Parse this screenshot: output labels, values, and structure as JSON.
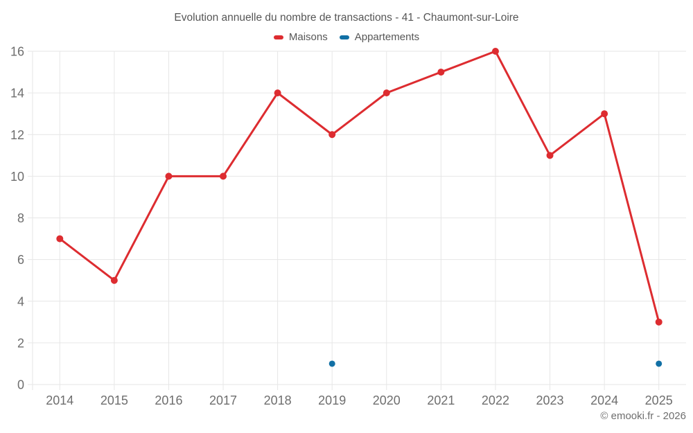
{
  "title": "Evolution annuelle du nombre de transactions - 41 - Chaumont-sur-Loire",
  "legend": {
    "items": [
      {
        "label": "Maisons",
        "color": "#dd2c30"
      },
      {
        "label": "Appartements",
        "color": "#1170a5"
      }
    ]
  },
  "footer": "© emooki.fr - 2026",
  "colors": {
    "grid": "#e6e6e6",
    "axis_label": "#6e6e6e",
    "title_text": "#565656",
    "background": "#ffffff",
    "maisons": "#dd2c30",
    "appartements": "#1170a5"
  },
  "chart_data": {
    "type": "line",
    "title": "Evolution annuelle du nombre de transactions - 41 - Chaumont-sur-Loire",
    "categories": [
      "2014",
      "2015",
      "2016",
      "2017",
      "2018",
      "2019",
      "2020",
      "2021",
      "2022",
      "2023",
      "2024",
      "2025"
    ],
    "series": [
      {
        "name": "Maisons",
        "color": "#dd2c30",
        "style": "line-markers",
        "values": [
          7,
          5,
          10,
          10,
          14,
          12,
          14,
          15,
          16,
          11,
          13,
          3
        ]
      },
      {
        "name": "Appartements",
        "color": "#1170a5",
        "style": "markers-only",
        "values": [
          null,
          null,
          null,
          null,
          null,
          1,
          null,
          null,
          null,
          null,
          null,
          1
        ]
      }
    ],
    "xlabel": "",
    "ylabel": "",
    "ylim": [
      0,
      16
    ],
    "ytick_step": 2,
    "grid": true,
    "legend_position": "top"
  }
}
